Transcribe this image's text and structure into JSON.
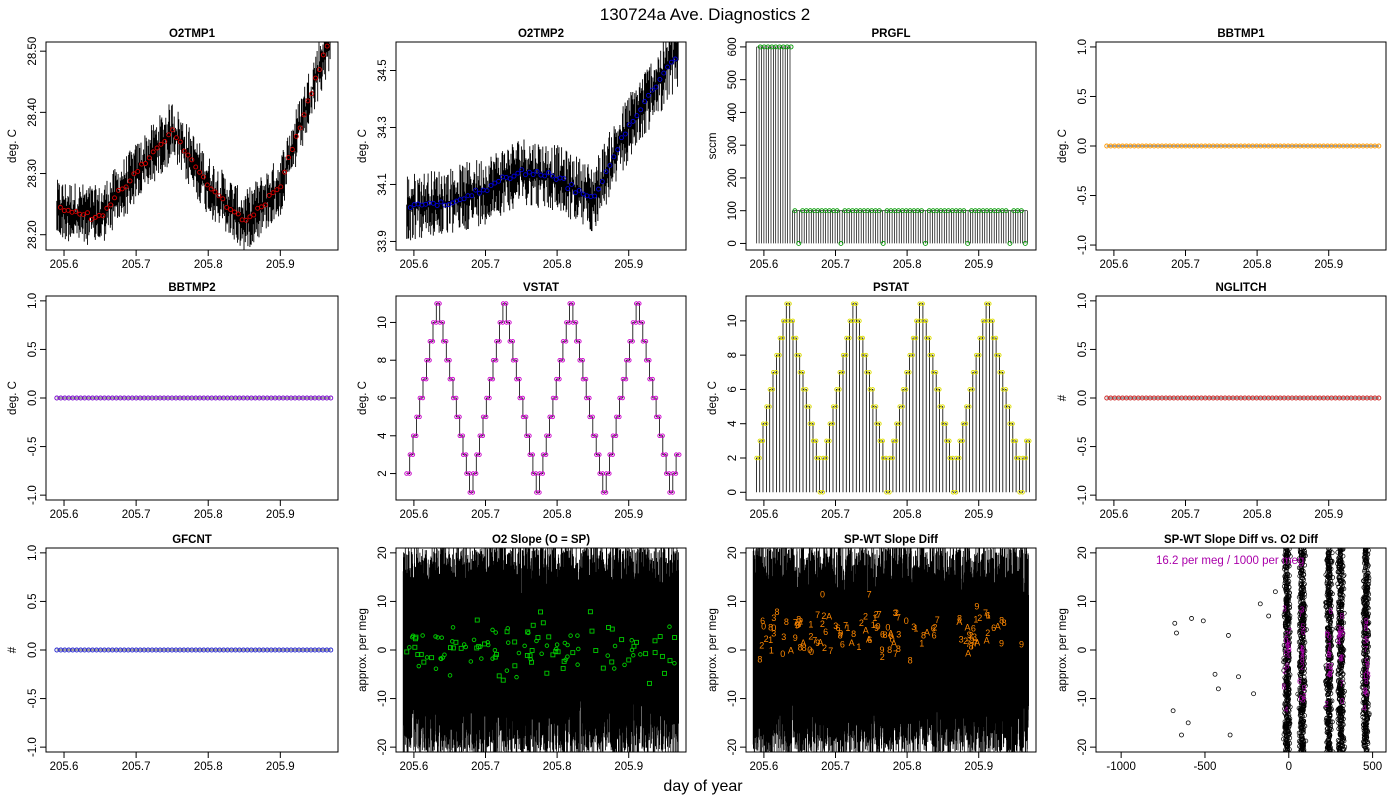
{
  "figure": {
    "title": "130724a   Ave. Diagnostics 2",
    "xlabel": "day of year"
  },
  "chart_data": [
    {
      "id": "o2tmp1",
      "type": "line",
      "title": "O2TMP1",
      "ylabel": "deg. C",
      "xlim": [
        205.575,
        205.98
      ],
      "ylim": [
        28.175,
        28.515
      ],
      "xticks": [
        205.6,
        205.7,
        205.8,
        205.9
      ],
      "xtick_labels": [
        "205.6",
        "205.7",
        "205.8",
        "205.9"
      ],
      "yticks": [
        28.2,
        28.3,
        28.4,
        28.5
      ],
      "ytick_labels": [
        "28.20",
        "28.30",
        "28.40",
        "28.50"
      ],
      "raw_style": "band",
      "raw_band": 0.05,
      "marker": "circle",
      "marker_color": "#dd0000",
      "series": [
        {
          "x": [
            205.595,
            205.65,
            205.7,
            205.75,
            205.8,
            205.85,
            205.9,
            205.965
          ],
          "y": [
            28.24,
            28.23,
            28.3,
            28.37,
            28.28,
            28.22,
            28.28,
            28.51
          ]
        }
      ]
    },
    {
      "id": "o2tmp2",
      "type": "line",
      "title": "O2TMP2",
      "ylabel": "deg. C",
      "xlim": [
        205.575,
        205.98
      ],
      "ylim": [
        33.87,
        34.6
      ],
      "xticks": [
        205.6,
        205.7,
        205.8,
        205.9
      ],
      "xtick_labels": [
        "205.6",
        "205.7",
        "205.8",
        "205.9"
      ],
      "yticks": [
        33.9,
        34.1,
        34.3,
        34.5
      ],
      "ytick_labels": [
        "33.9",
        "34.1",
        "34.3",
        "34.5"
      ],
      "raw_style": "band",
      "raw_band": 0.12,
      "marker": "circle",
      "marker_color": "#0000dd",
      "series": [
        {
          "x": [
            205.595,
            205.65,
            205.7,
            205.75,
            205.8,
            205.85,
            205.9,
            205.965
          ],
          "y": [
            34.02,
            34.04,
            34.08,
            34.15,
            34.12,
            34.05,
            34.3,
            34.55
          ]
        }
      ]
    },
    {
      "id": "prgfl",
      "type": "line",
      "title": "PRGFL",
      "ylabel": "sccm",
      "xlim": [
        205.575,
        205.98
      ],
      "ylim": [
        -20,
        615
      ],
      "xticks": [
        205.6,
        205.7,
        205.8,
        205.9
      ],
      "xtick_labels": [
        "205.6",
        "205.7",
        "205.8",
        "205.9"
      ],
      "yticks": [
        0,
        100,
        200,
        300,
        400,
        500,
        600
      ],
      "ytick_labels": [
        "0",
        "100",
        "200",
        "300",
        "400",
        "500",
        "600"
      ],
      "raw_style": "purge",
      "marker": "circle",
      "marker_color": "#009900",
      "series": [
        {
          "x": [
            205.595,
            205.61,
            205.625,
            205.64,
            205.66,
            205.7,
            205.74,
            205.78,
            205.82,
            205.86,
            205.9,
            205.94,
            205.965
          ],
          "y": [
            600,
            600,
            600,
            600,
            100,
            100,
            100,
            100,
            100,
            100,
            100,
            100,
            0
          ]
        }
      ]
    },
    {
      "id": "bbtmp1",
      "type": "line",
      "title": "BBTMP1",
      "ylabel": "deg. C",
      "xlim": [
        205.575,
        205.98
      ],
      "ylim": [
        -1.05,
        1.05
      ],
      "xticks": [
        205.6,
        205.7,
        205.8,
        205.9
      ],
      "xtick_labels": [
        "205.6",
        "205.7",
        "205.8",
        "205.9"
      ],
      "yticks": [
        -1,
        -0.5,
        0,
        0.5,
        1
      ],
      "ytick_labels": [
        "-1.0",
        "-0.5",
        "0.0",
        "0.5",
        "1.0"
      ],
      "raw_style": "flat",
      "marker": "circle",
      "marker_color": "#ff9900",
      "series": [
        {
          "x": [
            205.59,
            205.97
          ],
          "y": [
            0,
            0
          ]
        }
      ]
    },
    {
      "id": "bbtmp2",
      "type": "line",
      "title": "BBTMP2",
      "ylabel": "deg. C",
      "xlim": [
        205.575,
        205.98
      ],
      "ylim": [
        -1.05,
        1.05
      ],
      "xticks": [
        205.6,
        205.7,
        205.8,
        205.9
      ],
      "xtick_labels": [
        "205.6",
        "205.7",
        "205.8",
        "205.9"
      ],
      "yticks": [
        -1,
        -0.5,
        0,
        0.5,
        1
      ],
      "ytick_labels": [
        "-1.0",
        "-0.5",
        "0.0",
        "0.5",
        "1.0"
      ],
      "raw_style": "flat",
      "marker": "circle",
      "marker_color": "#7700cc",
      "series": [
        {
          "x": [
            205.59,
            205.97
          ],
          "y": [
            0,
            0
          ]
        }
      ]
    },
    {
      "id": "vstat",
      "type": "line",
      "title": "VSTAT",
      "ylabel": "deg. C",
      "xlim": [
        205.575,
        205.98
      ],
      "ylim": [
        0.6,
        11.4
      ],
      "xticks": [
        205.6,
        205.7,
        205.8,
        205.9
      ],
      "xtick_labels": [
        "205.6",
        "205.7",
        "205.8",
        "205.9"
      ],
      "yticks": [
        2,
        4,
        6,
        8,
        10
      ],
      "ytick_labels": [
        "2",
        "4",
        "6",
        "8",
        "10"
      ],
      "raw_style": "step",
      "period": 0.093,
      "marker": "circle",
      "marker_color": "#cc00cc",
      "series": [
        {
          "x": [
            205.59,
            205.6345,
            205.683,
            205.7275,
            205.776,
            205.8205,
            205.869,
            205.9135,
            205.962
          ],
          "y": [
            2,
            11,
            1,
            11,
            1,
            11,
            1,
            11,
            1
          ]
        }
      ]
    },
    {
      "id": "pstat",
      "type": "line",
      "title": "PSTAT",
      "ylabel": "deg. C",
      "xlim": [
        205.575,
        205.98
      ],
      "ylim": [
        -0.45,
        11.45
      ],
      "xticks": [
        205.6,
        205.7,
        205.8,
        205.9
      ],
      "xtick_labels": [
        "205.6",
        "205.7",
        "205.8",
        "205.9"
      ],
      "yticks": [
        0,
        2,
        4,
        6,
        8,
        10
      ],
      "ytick_labels": [
        "0",
        "2",
        "4",
        "6",
        "8",
        "10"
      ],
      "raw_style": "spikes",
      "period": 0.093,
      "marker": "circle",
      "marker_color": "#dddd00",
      "series": [
        {
          "x": [
            205.59,
            205.6345,
            205.683,
            205.7275,
            205.776,
            205.8205,
            205.869,
            205.9135,
            205.962
          ],
          "y": [
            1,
            11,
            0,
            11,
            0,
            11,
            0,
            11,
            0
          ]
        }
      ]
    },
    {
      "id": "nglitch",
      "type": "line",
      "title": "NGLITCH",
      "ylabel": "#",
      "xlim": [
        205.575,
        205.98
      ],
      "ylim": [
        -1.05,
        1.05
      ],
      "xticks": [
        205.6,
        205.7,
        205.8,
        205.9
      ],
      "xtick_labels": [
        "205.6",
        "205.7",
        "205.8",
        "205.9"
      ],
      "yticks": [
        -1,
        -0.5,
        0,
        0.5,
        1
      ],
      "ytick_labels": [
        "-1.0",
        "-0.5",
        "0.0",
        "0.5",
        "1.0"
      ],
      "raw_style": "flat",
      "marker": "circle",
      "marker_color": "#cc2222",
      "series": [
        {
          "x": [
            205.59,
            205.97
          ],
          "y": [
            0,
            0
          ]
        }
      ]
    },
    {
      "id": "gfcnt",
      "type": "line",
      "title": "GFCNT",
      "ylabel": "#",
      "xlim": [
        205.575,
        205.98
      ],
      "ylim": [
        -1.05,
        1.05
      ],
      "xticks": [
        205.6,
        205.7,
        205.8,
        205.9
      ],
      "xtick_labels": [
        "205.6",
        "205.7",
        "205.8",
        "205.9"
      ],
      "yticks": [
        -1,
        -0.5,
        0,
        0.5,
        1
      ],
      "ytick_labels": [
        "-1.0",
        "-0.5",
        "0.0",
        "0.5",
        "1.0"
      ],
      "raw_style": "flat",
      "marker": "circle",
      "marker_color": "#2222cc",
      "series": [
        {
          "x": [
            205.59,
            205.97
          ],
          "y": [
            0,
            0
          ]
        }
      ]
    },
    {
      "id": "o2slope",
      "type": "scatter",
      "title": "O2 Slope (O = SP)",
      "ylabel": "approx. per meg",
      "xlim": [
        205.575,
        205.98
      ],
      "ylim": [
        -21,
        21
      ],
      "xticks": [
        205.6,
        205.7,
        205.8,
        205.9
      ],
      "xtick_labels": [
        "205.6",
        "205.7",
        "205.8",
        "205.9"
      ],
      "yticks": [
        -20,
        -10,
        0,
        10,
        20
      ],
      "ytick_labels": [
        "-20",
        "-10",
        "0",
        "10",
        "20"
      ],
      "raw_style": "noise",
      "marker_color": "#00cc00",
      "center": 0,
      "spread": 4
    },
    {
      "id": "spwtdiff",
      "type": "scatter",
      "title": "SP-WT Slope Diff",
      "ylabel": "approx. per meg",
      "xlim": [
        205.575,
        205.98
      ],
      "ylim": [
        -21,
        21
      ],
      "xticks": [
        205.6,
        205.7,
        205.8,
        205.9
      ],
      "xtick_labels": [
        "205.6",
        "205.7",
        "205.8",
        "205.9"
      ],
      "yticks": [
        -20,
        -10,
        0,
        10,
        20
      ],
      "ytick_labels": [
        "-20",
        "-10",
        "0",
        "10",
        "20"
      ],
      "raw_style": "noise",
      "marker_color": "#ff8800",
      "center": 4,
      "spread": 4,
      "symbols": [
        "1",
        "2",
        "3",
        "6",
        "7",
        "8",
        "9",
        "0",
        "A"
      ]
    },
    {
      "id": "spwtvso2",
      "type": "scatter",
      "title": "SP-WT Slope Diff vs. O2 Diff",
      "ylabel": "approx. per meg",
      "xlim": [
        -1150,
        580
      ],
      "ylim": [
        -21,
        21
      ],
      "xticks": [
        -1000,
        -500,
        0,
        500
      ],
      "xtick_labels": [
        "-1000",
        "-500",
        "0",
        "500"
      ],
      "yticks": [
        -20,
        -10,
        0,
        10,
        20
      ],
      "ytick_labels": [
        "-20",
        "-10",
        "0",
        "10",
        "20"
      ],
      "raw_style": "columns",
      "column_centers": [
        -10,
        80,
        240,
        310,
        460
      ],
      "annotation": "16.2 per meg / 1000 per meg",
      "annotation_color": "#aa00aa"
    }
  ]
}
